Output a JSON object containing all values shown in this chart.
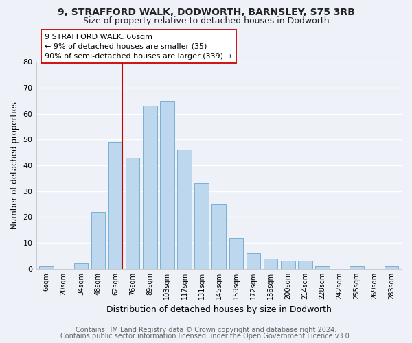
{
  "title": "9, STRAFFORD WALK, DODWORTH, BARNSLEY, S75 3RB",
  "subtitle": "Size of property relative to detached houses in Dodworth",
  "xlabel": "Distribution of detached houses by size in Dodworth",
  "ylabel": "Number of detached properties",
  "bar_labels": [
    "6sqm",
    "20sqm",
    "34sqm",
    "48sqm",
    "62sqm",
    "76sqm",
    "89sqm",
    "103sqm",
    "117sqm",
    "131sqm",
    "145sqm",
    "159sqm",
    "172sqm",
    "186sqm",
    "200sqm",
    "214sqm",
    "228sqm",
    "242sqm",
    "255sqm",
    "269sqm",
    "283sqm"
  ],
  "bar_values": [
    1,
    0,
    2,
    22,
    49,
    43,
    63,
    65,
    46,
    33,
    25,
    12,
    6,
    4,
    3,
    3,
    1,
    0,
    1,
    0,
    1
  ],
  "bar_color": "#bdd7ee",
  "bar_edge_color": "#7ab0d4",
  "vline_x_index": 4,
  "vline_color": "#cc0000",
  "annotation_lines": [
    "9 STRAFFORD WALK: 66sqm",
    "← 9% of detached houses are smaller (35)",
    "90% of semi-detached houses are larger (339) →"
  ],
  "ylim": [
    0,
    80
  ],
  "yticks": [
    0,
    10,
    20,
    30,
    40,
    50,
    60,
    70,
    80
  ],
  "footer_line1": "Contains HM Land Registry data © Crown copyright and database right 2024.",
  "footer_line2": "Contains public sector information licensed under the Open Government Licence v3.0.",
  "background_color": "#eef2f8",
  "grid_color": "#ffffff",
  "title_fontsize": 10,
  "subtitle_fontsize": 9,
  "annotation_fontsize": 8,
  "footer_fontsize": 7
}
